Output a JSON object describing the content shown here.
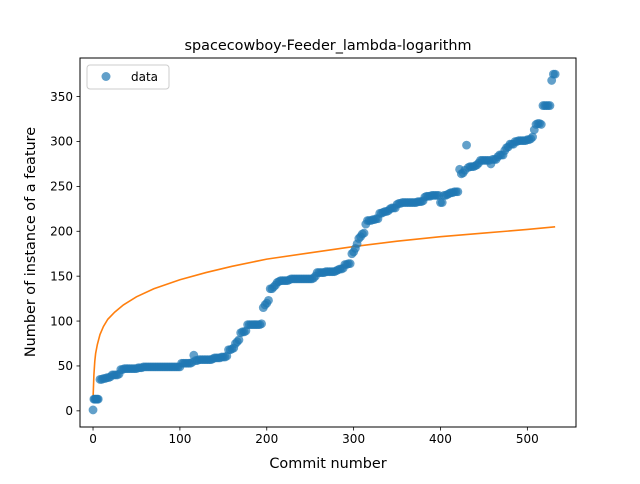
{
  "chart_data": {
    "type": "scatter",
    "title": "spacecowboy-Feeder_lambda-logarithm",
    "xlabel": "Commit number",
    "ylabel": "Number of instance of a feature",
    "xlim": [
      -15,
      556
    ],
    "ylim": [
      -18,
      393
    ],
    "xticks": [
      0,
      100,
      200,
      300,
      400,
      500
    ],
    "yticks": [
      0,
      50,
      100,
      150,
      200,
      250,
      300,
      350
    ],
    "grid": false,
    "legend_position": "upper-left",
    "colors": {
      "data": "#1f77b4",
      "fit": "#ff7f0e"
    },
    "series": [
      {
        "name": "data",
        "style": "markers",
        "points": [
          [
            0,
            1
          ],
          [
            1,
            13
          ],
          [
            2,
            13
          ],
          [
            3,
            13
          ],
          [
            4,
            13
          ],
          [
            5,
            13
          ],
          [
            6,
            13
          ],
          [
            8,
            35
          ],
          [
            10,
            35
          ],
          [
            12,
            36
          ],
          [
            14,
            36
          ],
          [
            16,
            37
          ],
          [
            18,
            37
          ],
          [
            20,
            38
          ],
          [
            22,
            40
          ],
          [
            24,
            40
          ],
          [
            26,
            40
          ],
          [
            28,
            40
          ],
          [
            30,
            41
          ],
          [
            32,
            46
          ],
          [
            34,
            46
          ],
          [
            36,
            47
          ],
          [
            38,
            47
          ],
          [
            40,
            47
          ],
          [
            42,
            47
          ],
          [
            44,
            47
          ],
          [
            46,
            47
          ],
          [
            48,
            47
          ],
          [
            50,
            47
          ],
          [
            52,
            48
          ],
          [
            54,
            48
          ],
          [
            56,
            48
          ],
          [
            58,
            49
          ],
          [
            60,
            49
          ],
          [
            62,
            49
          ],
          [
            64,
            49
          ],
          [
            66,
            49
          ],
          [
            68,
            49
          ],
          [
            70,
            49
          ],
          [
            72,
            49
          ],
          [
            74,
            49
          ],
          [
            76,
            49
          ],
          [
            78,
            49
          ],
          [
            80,
            49
          ],
          [
            82,
            49
          ],
          [
            84,
            49
          ],
          [
            86,
            49
          ],
          [
            88,
            49
          ],
          [
            90,
            49
          ],
          [
            92,
            49
          ],
          [
            94,
            49
          ],
          [
            96,
            49
          ],
          [
            98,
            49
          ],
          [
            100,
            49
          ],
          [
            102,
            53
          ],
          [
            104,
            53
          ],
          [
            106,
            53
          ],
          [
            108,
            53
          ],
          [
            110,
            53
          ],
          [
            112,
            53
          ],
          [
            114,
            54
          ],
          [
            116,
            62
          ],
          [
            118,
            56
          ],
          [
            120,
            56
          ],
          [
            122,
            57
          ],
          [
            124,
            57
          ],
          [
            126,
            57
          ],
          [
            128,
            57
          ],
          [
            130,
            57
          ],
          [
            132,
            57
          ],
          [
            134,
            57
          ],
          [
            136,
            57
          ],
          [
            138,
            58
          ],
          [
            140,
            59
          ],
          [
            142,
            59
          ],
          [
            144,
            59
          ],
          [
            146,
            59
          ],
          [
            148,
            60
          ],
          [
            150,
            60
          ],
          [
            152,
            60
          ],
          [
            154,
            61
          ],
          [
            156,
            68
          ],
          [
            158,
            68
          ],
          [
            160,
            69
          ],
          [
            162,
            70
          ],
          [
            164,
            75
          ],
          [
            166,
            77
          ],
          [
            168,
            79
          ],
          [
            170,
            87
          ],
          [
            172,
            88
          ],
          [
            174,
            88
          ],
          [
            176,
            89
          ],
          [
            178,
            96
          ],
          [
            180,
            96
          ],
          [
            182,
            96
          ],
          [
            184,
            96
          ],
          [
            186,
            96
          ],
          [
            188,
            96
          ],
          [
            190,
            96
          ],
          [
            192,
            96
          ],
          [
            194,
            97
          ],
          [
            196,
            115
          ],
          [
            198,
            118
          ],
          [
            200,
            120
          ],
          [
            202,
            123
          ],
          [
            204,
            136
          ],
          [
            206,
            136
          ],
          [
            208,
            138
          ],
          [
            210,
            140
          ],
          [
            212,
            143
          ],
          [
            214,
            144
          ],
          [
            216,
            145
          ],
          [
            218,
            145
          ],
          [
            220,
            145
          ],
          [
            222,
            145
          ],
          [
            224,
            145
          ],
          [
            226,
            146
          ],
          [
            228,
            147
          ],
          [
            230,
            147
          ],
          [
            232,
            147
          ],
          [
            234,
            147
          ],
          [
            236,
            147
          ],
          [
            238,
            147
          ],
          [
            240,
            147
          ],
          [
            242,
            147
          ],
          [
            244,
            147
          ],
          [
            246,
            147
          ],
          [
            248,
            147
          ],
          [
            250,
            147
          ],
          [
            252,
            147
          ],
          [
            254,
            148
          ],
          [
            256,
            150
          ],
          [
            258,
            154
          ],
          [
            260,
            154
          ],
          [
            262,
            154
          ],
          [
            264,
            154
          ],
          [
            266,
            154
          ],
          [
            268,
            155
          ],
          [
            270,
            155
          ],
          [
            272,
            155
          ],
          [
            274,
            155
          ],
          [
            276,
            155
          ],
          [
            278,
            155
          ],
          [
            280,
            156
          ],
          [
            282,
            157
          ],
          [
            284,
            158
          ],
          [
            286,
            158
          ],
          [
            288,
            159
          ],
          [
            290,
            163
          ],
          [
            292,
            163
          ],
          [
            294,
            164
          ],
          [
            296,
            164
          ],
          [
            298,
            175
          ],
          [
            300,
            177
          ],
          [
            302,
            181
          ],
          [
            304,
            186
          ],
          [
            306,
            192
          ],
          [
            308,
            194
          ],
          [
            310,
            197
          ],
          [
            312,
            198
          ],
          [
            314,
            208
          ],
          [
            316,
            212
          ],
          [
            318,
            212
          ],
          [
            320,
            212
          ],
          [
            322,
            213
          ],
          [
            324,
            213
          ],
          [
            326,
            214
          ],
          [
            328,
            214
          ],
          [
            330,
            220
          ],
          [
            332,
            220
          ],
          [
            334,
            221
          ],
          [
            336,
            222
          ],
          [
            338,
            222
          ],
          [
            340,
            223
          ],
          [
            342,
            225
          ],
          [
            344,
            226
          ],
          [
            346,
            226
          ],
          [
            348,
            226
          ],
          [
            350,
            230
          ],
          [
            352,
            231
          ],
          [
            354,
            231
          ],
          [
            356,
            232
          ],
          [
            358,
            232
          ],
          [
            360,
            232
          ],
          [
            362,
            232
          ],
          [
            364,
            232
          ],
          [
            366,
            232
          ],
          [
            368,
            232
          ],
          [
            370,
            232
          ],
          [
            372,
            232
          ],
          [
            374,
            233
          ],
          [
            376,
            233
          ],
          [
            378,
            233
          ],
          [
            380,
            234
          ],
          [
            382,
            238
          ],
          [
            384,
            239
          ],
          [
            386,
            239
          ],
          [
            388,
            239
          ],
          [
            390,
            240
          ],
          [
            392,
            240
          ],
          [
            394,
            240
          ],
          [
            396,
            240
          ],
          [
            398,
            240
          ],
          [
            400,
            232
          ],
          [
            402,
            232
          ],
          [
            404,
            240
          ],
          [
            406,
            240
          ],
          [
            408,
            241
          ],
          [
            410,
            242
          ],
          [
            412,
            243
          ],
          [
            414,
            243
          ],
          [
            416,
            244
          ],
          [
            418,
            244
          ],
          [
            420,
            244
          ],
          [
            422,
            269
          ],
          [
            424,
            264
          ],
          [
            426,
            265
          ],
          [
            428,
            268
          ],
          [
            430,
            296
          ],
          [
            432,
            271
          ],
          [
            434,
            272
          ],
          [
            436,
            272
          ],
          [
            438,
            272
          ],
          [
            440,
            273
          ],
          [
            442,
            274
          ],
          [
            444,
            276
          ],
          [
            446,
            279
          ],
          [
            448,
            279
          ],
          [
            450,
            279
          ],
          [
            452,
            279
          ],
          [
            454,
            279
          ],
          [
            456,
            279
          ],
          [
            458,
            275
          ],
          [
            460,
            280
          ],
          [
            462,
            280
          ],
          [
            464,
            280
          ],
          [
            466,
            283
          ],
          [
            468,
            285
          ],
          [
            470,
            285
          ],
          [
            472,
            285
          ],
          [
            474,
            290
          ],
          [
            476,
            293
          ],
          [
            478,
            294
          ],
          [
            480,
            297
          ],
          [
            482,
            297
          ],
          [
            484,
            297
          ],
          [
            486,
            300
          ],
          [
            488,
            300
          ],
          [
            490,
            301
          ],
          [
            492,
            301
          ],
          [
            494,
            301
          ],
          [
            496,
            301
          ],
          [
            498,
            301
          ],
          [
            500,
            302
          ],
          [
            502,
            302
          ],
          [
            504,
            303
          ],
          [
            506,
            305
          ],
          [
            508,
            313
          ],
          [
            510,
            319
          ],
          [
            512,
            320
          ],
          [
            514,
            320
          ],
          [
            516,
            319
          ],
          [
            518,
            340
          ],
          [
            520,
            340
          ],
          [
            522,
            340
          ],
          [
            524,
            340
          ],
          [
            526,
            340
          ],
          [
            528,
            368
          ],
          [
            530,
            375
          ],
          [
            532,
            375
          ]
        ]
      },
      {
        "style": "line",
        "function": "logarithmic",
        "points": [
          [
            0,
            13
          ],
          [
            1,
            40
          ],
          [
            2,
            55
          ],
          [
            3,
            64
          ],
          [
            5,
            74
          ],
          [
            8,
            85
          ],
          [
            12,
            94
          ],
          [
            17,
            102
          ],
          [
            25,
            110
          ],
          [
            35,
            118
          ],
          [
            50,
            127
          ],
          [
            70,
            136
          ],
          [
            100,
            146
          ],
          [
            130,
            154
          ],
          [
            160,
            161
          ],
          [
            200,
            169
          ],
          [
            250,
            176
          ],
          [
            300,
            183
          ],
          [
            350,
            189
          ],
          [
            400,
            194
          ],
          [
            450,
            198
          ],
          [
            500,
            202
          ],
          [
            532,
            205
          ]
        ]
      }
    ]
  }
}
